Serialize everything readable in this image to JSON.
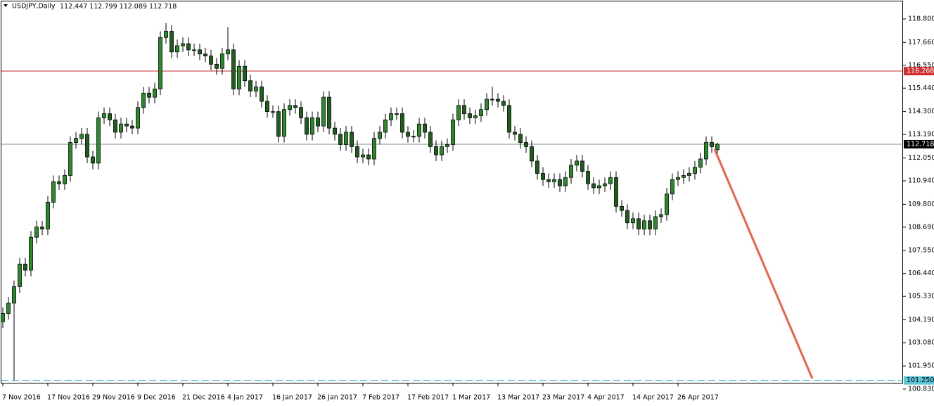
{
  "chart_data": {
    "type": "candlestick",
    "title": "USDJPY,Daily",
    "categories": [
      "7 Nov 2016",
      null,
      null,
      null,
      null,
      null,
      null,
      null,
      "17 Nov 2016",
      null,
      null,
      null,
      null,
      null,
      null,
      null,
      "29 Nov 2016",
      null,
      null,
      null,
      null,
      null,
      null,
      null,
      "9 Dec 2016",
      null,
      null,
      null,
      null,
      null,
      null,
      null,
      "21 Dec 2016",
      null,
      null,
      null,
      null,
      null,
      null,
      null,
      "4 Jan 2017",
      null,
      null,
      null,
      null,
      null,
      null,
      null,
      "16 Jan 2017",
      null,
      null,
      null,
      null,
      null,
      null,
      null,
      "26 Jan 2017",
      null,
      null,
      null,
      null,
      null,
      null,
      null,
      "7 Feb 2017",
      null,
      null,
      null,
      null,
      null,
      null,
      null,
      "17 Feb 2017",
      null,
      null,
      null,
      null,
      null,
      null,
      null,
      "1 Mar 2017",
      null,
      null,
      null,
      null,
      null,
      null,
      null,
      "13 Mar 2017",
      null,
      null,
      null,
      null,
      null,
      null,
      null,
      "23 Mar 2017",
      null,
      null,
      null,
      null,
      null,
      null,
      null,
      "4 Apr 2017",
      null,
      null,
      null,
      null,
      null,
      null,
      null,
      "14 Apr 2017",
      null,
      null,
      null,
      null,
      null,
      null,
      null,
      "26 Apr 2017",
      null,
      null,
      null,
      null,
      null,
      null,
      null
    ],
    "open": [
      104.1,
      104.5,
      105.0,
      105.8,
      106.9,
      106.6,
      108.2,
      108.7,
      108.6,
      109.9,
      110.9,
      110.8,
      111.2,
      112.8,
      113.0,
      113.2,
      112.1,
      111.8,
      114.0,
      114.2,
      113.9,
      113.3,
      113.7,
      113.6,
      113.5,
      114.5,
      115.2,
      115.0,
      115.4,
      117.9,
      118.2,
      117.2,
      117.5,
      117.6,
      117.3,
      117.3,
      117.1,
      117.0,
      116.6,
      116.4,
      117.1,
      117.3,
      115.4,
      116.5,
      115.8,
      115.3,
      115.5,
      114.8,
      114.3,
      114.3,
      113.1,
      114.4,
      114.6,
      114.5,
      114.0,
      113.2,
      114.0,
      113.6,
      115.0,
      113.5,
      113.2,
      112.7,
      113.3,
      112.6,
      112.1,
      112.2,
      112.0,
      113.0,
      113.3,
      113.9,
      114.2,
      114.2,
      113.3,
      113.1,
      113.1,
      113.7,
      113.3,
      112.6,
      112.2,
      112.6,
      112.7,
      113.9,
      114.6,
      114.2,
      114.0,
      114.1,
      114.4,
      114.9,
      114.9,
      114.8,
      114.6,
      113.3,
      113.2,
      112.8,
      112.6,
      111.9,
      111.3,
      111.0,
      110.9,
      111.0,
      110.7,
      111.1,
      111.7,
      111.9,
      111.4,
      110.8,
      110.6,
      110.7,
      110.8,
      111.1,
      109.7,
      109.5,
      108.9,
      109.1,
      108.6,
      109.0,
      108.6,
      109.2,
      109.3,
      110.3,
      111.0,
      111.1,
      111.2,
      111.3,
      111.6,
      112.0,
      112.8,
      112.447
    ],
    "high": [
      104.8,
      105.3,
      106.1,
      107.2,
      107.2,
      108.5,
      109.0,
      109.0,
      110.2,
      111.2,
      111.2,
      111.5,
      113.1,
      113.3,
      113.5,
      113.5,
      112.4,
      114.3,
      114.5,
      114.5,
      114.2,
      114.0,
      114.0,
      113.9,
      114.8,
      115.5,
      115.5,
      115.7,
      118.2,
      118.6,
      118.5,
      117.8,
      117.9,
      117.9,
      117.6,
      117.6,
      117.4,
      117.3,
      116.9,
      117.4,
      118.4,
      117.6,
      116.8,
      116.8,
      116.1,
      115.8,
      115.8,
      115.1,
      114.6,
      114.6,
      114.7,
      114.9,
      114.9,
      114.8,
      114.3,
      114.3,
      114.3,
      115.3,
      115.3,
      113.8,
      113.5,
      113.6,
      113.6,
      112.9,
      112.5,
      112.5,
      113.3,
      113.6,
      114.2,
      114.5,
      114.5,
      114.5,
      113.6,
      113.4,
      114.0,
      114.0,
      113.6,
      112.9,
      112.9,
      113.0,
      114.2,
      114.9,
      114.9,
      114.5,
      114.4,
      114.7,
      115.2,
      115.5,
      115.2,
      115.1,
      114.9,
      113.6,
      113.5,
      113.1,
      112.9,
      112.2,
      111.6,
      111.3,
      111.3,
      111.3,
      111.4,
      112.0,
      112.2,
      112.2,
      111.7,
      111.1,
      111.0,
      111.1,
      111.4,
      111.4,
      110.0,
      109.8,
      109.4,
      109.4,
      109.3,
      109.3,
      109.5,
      109.6,
      110.6,
      111.3,
      111.4,
      111.5,
      111.6,
      111.9,
      112.3,
      113.1,
      113.1,
      112.799
    ],
    "low": [
      103.8,
      104.2,
      101.25,
      105.5,
      106.3,
      106.3,
      107.9,
      108.3,
      108.3,
      109.6,
      110.5,
      110.5,
      110.9,
      112.5,
      112.7,
      111.8,
      111.5,
      111.5,
      113.7,
      113.6,
      113.0,
      113.0,
      113.3,
      113.2,
      113.2,
      114.2,
      114.7,
      114.7,
      115.1,
      117.6,
      116.9,
      116.9,
      117.2,
      117.0,
      117.0,
      116.8,
      116.7,
      116.3,
      116.1,
      116.1,
      116.8,
      115.1,
      115.1,
      115.5,
      115.0,
      115.0,
      114.5,
      114.0,
      114.0,
      112.8,
      112.8,
      114.1,
      114.2,
      113.7,
      112.9,
      112.9,
      113.3,
      113.3,
      113.2,
      112.9,
      112.4,
      112.4,
      112.3,
      111.8,
      111.8,
      111.7,
      111.7,
      112.7,
      113.0,
      113.6,
      113.9,
      113.0,
      112.8,
      112.8,
      112.8,
      113.0,
      112.3,
      111.9,
      111.9,
      112.3,
      112.4,
      113.6,
      113.9,
      113.7,
      113.7,
      113.8,
      114.1,
      114.6,
      114.5,
      114.3,
      113.0,
      112.9,
      112.5,
      112.3,
      111.6,
      111.0,
      110.7,
      110.6,
      110.6,
      110.4,
      110.4,
      110.8,
      111.4,
      111.1,
      110.5,
      110.3,
      110.3,
      110.4,
      110.5,
      109.4,
      109.2,
      108.6,
      108.6,
      108.3,
      108.3,
      108.3,
      108.3,
      108.9,
      109.0,
      110.0,
      110.7,
      110.8,
      110.9,
      111.0,
      111.3,
      111.7,
      112.3,
      112.089
    ],
    "close": [
      104.5,
      105.0,
      105.8,
      106.9,
      106.6,
      108.2,
      108.7,
      108.6,
      109.9,
      110.9,
      110.8,
      111.2,
      112.8,
      113.0,
      113.2,
      112.1,
      111.8,
      114.0,
      114.2,
      113.9,
      113.3,
      113.7,
      113.6,
      113.5,
      114.5,
      115.2,
      115.0,
      115.4,
      117.9,
      118.2,
      117.2,
      117.5,
      117.6,
      117.3,
      117.3,
      117.1,
      117.0,
      116.6,
      116.4,
      117.1,
      117.3,
      115.4,
      116.5,
      115.8,
      115.3,
      115.5,
      114.8,
      114.3,
      114.3,
      113.1,
      114.4,
      114.6,
      114.5,
      114.0,
      113.2,
      114.0,
      113.6,
      115.0,
      113.5,
      113.2,
      112.7,
      113.3,
      112.6,
      112.1,
      112.2,
      112.0,
      113.0,
      113.3,
      113.9,
      114.2,
      114.2,
      113.3,
      113.1,
      113.1,
      113.7,
      113.3,
      112.6,
      112.2,
      112.6,
      112.7,
      113.9,
      114.6,
      114.2,
      114.0,
      114.1,
      114.4,
      114.9,
      114.9,
      114.8,
      114.6,
      113.3,
      113.2,
      112.8,
      112.6,
      111.9,
      111.3,
      111.0,
      110.9,
      111.0,
      110.7,
      111.1,
      111.7,
      111.9,
      111.4,
      110.8,
      110.6,
      110.7,
      110.8,
      111.1,
      109.7,
      109.5,
      108.9,
      109.1,
      108.6,
      109.0,
      108.6,
      109.2,
      109.3,
      110.3,
      111.0,
      111.1,
      111.2,
      111.3,
      111.6,
      112.0,
      112.8,
      112.6,
      112.718
    ],
    "up_color": "#2a8a2a",
    "down_color": "#1d5e1d",
    "ylim": [
      101.1,
      119.72
    ],
    "yticks": [
      {
        "value": 118.8,
        "label": "118.800"
      },
      {
        "value": 117.66,
        "label": "117.660"
      },
      {
        "value": 116.55,
        "label": "116.550"
      },
      {
        "value": 115.44,
        "label": "115.440"
      },
      {
        "value": 114.3,
        "label": "114.300"
      },
      {
        "value": 113.19,
        "label": "113.190"
      },
      {
        "value": 112.05,
        "label": "112.050"
      },
      {
        "value": 110.94,
        "label": "110.940"
      },
      {
        "value": 109.8,
        "label": "109.800"
      },
      {
        "value": 108.69,
        "label": "108.690"
      },
      {
        "value": 107.55,
        "label": "107.550"
      },
      {
        "value": 106.44,
        "label": "106.440"
      },
      {
        "value": 105.33,
        "label": "105.330"
      },
      {
        "value": 104.19,
        "label": "104.190"
      },
      {
        "value": 103.08,
        "label": "103.080"
      },
      {
        "value": 101.95,
        "label": "101.950"
      },
      {
        "value": 100.83,
        "label": "100.830"
      }
    ],
    "levels": [
      {
        "value": 116.268,
        "label": "116.268",
        "color": "#c62828",
        "label_fill": "#d32f2f",
        "label_text": "#ffffff",
        "style": "solid"
      },
      {
        "value": 112.718,
        "label": "112.718",
        "color": "#7f8f8a",
        "label_fill": "#000000",
        "label_text": "#ffffff",
        "style": "solid"
      },
      {
        "value": 101.25,
        "label": "101.250",
        "color": "#3cb4c8",
        "label_fill": "#5cc6d8",
        "label_text": "#000000",
        "style": "dashed"
      }
    ]
  }
}
